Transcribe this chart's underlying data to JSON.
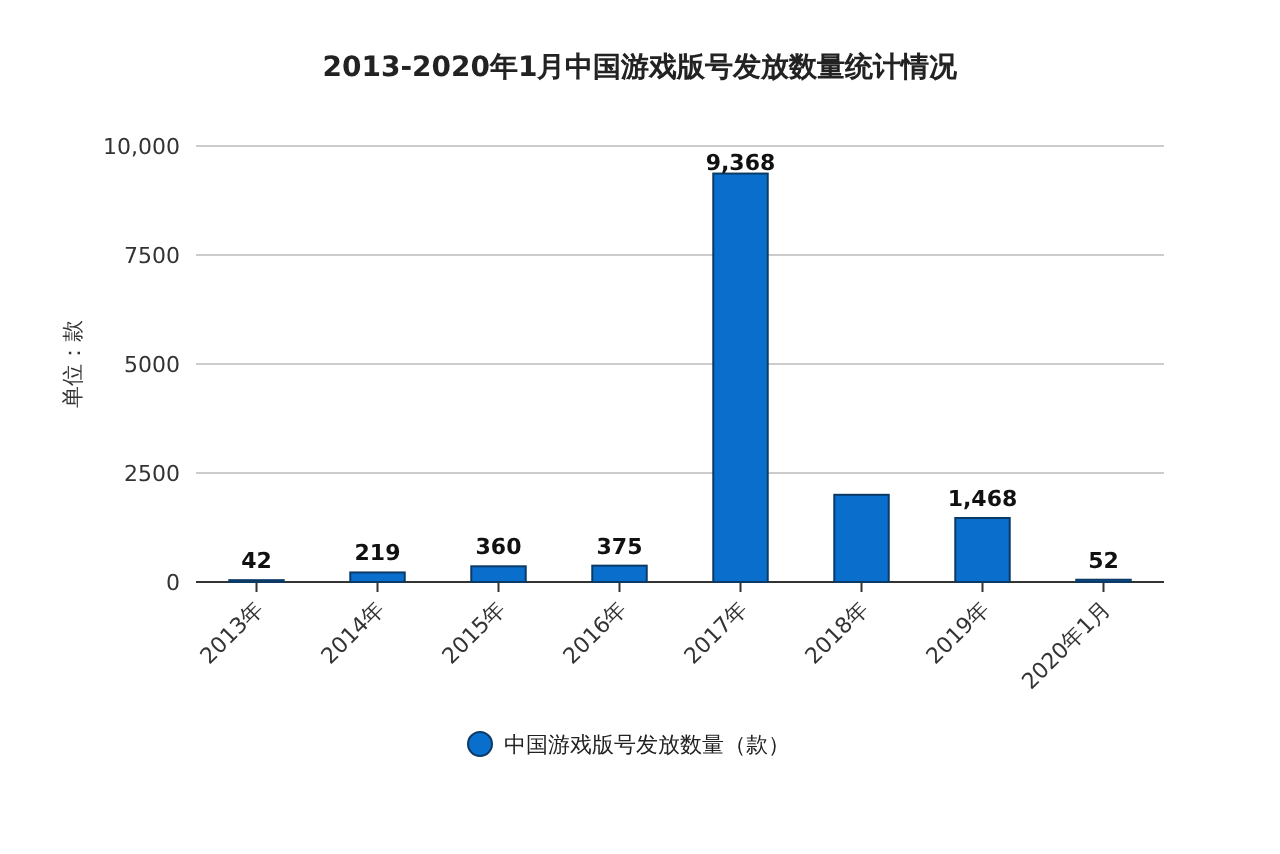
{
  "chart_data": {
    "type": "bar",
    "title": "2013-2020年1月中国游戏版号发放数量统计情况",
    "ylabel": "单位：款",
    "categories": [
      "2013年",
      "2014年",
      "2015年",
      "2016年",
      "2017年",
      "2018年",
      "2019年",
      "2020年1月"
    ],
    "series": [
      {
        "name": "中国游戏版号发放数量（款）",
        "color": "#0a6fcc",
        "values": [
          42,
          219,
          360,
          375,
          9368,
          2000,
          1468,
          52
        ],
        "value_labels": [
          "42",
          "219",
          "360",
          "375",
          "9,368",
          null,
          "1,468",
          "52"
        ]
      }
    ],
    "ylim": [
      0,
      10000
    ],
    "yticks": [
      0,
      2500,
      5000,
      7500,
      {
        "value": 10000,
        "label": "10,000"
      }
    ],
    "grid": "y",
    "legend": "bottom",
    "marker": "circle"
  }
}
